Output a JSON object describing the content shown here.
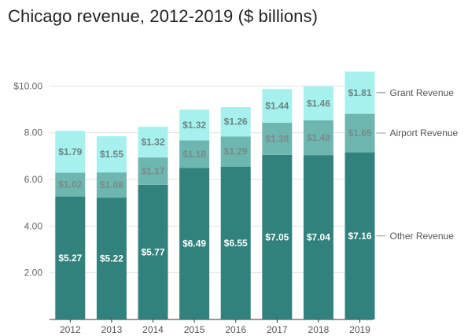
{
  "title": "Chicago revenue, 2012-2019 ($ billions)",
  "chart_data": {
    "type": "bar",
    "stacked": true,
    "title": "Chicago revenue, 2012-2019 ($ billions)",
    "categories": [
      "2012",
      "2013",
      "2014",
      "2015",
      "2016",
      "2017",
      "2018",
      "2019"
    ],
    "ylim": [
      0,
      12
    ],
    "yticks": [
      2,
      4,
      6,
      8,
      10
    ],
    "ytick_labels": [
      "2.00",
      "4.00",
      "6.00",
      "8.00",
      "$10.00"
    ],
    "grid": true,
    "legend_placement": "right, inline at top of final bar segments",
    "series": [
      {
        "name": "Other Revenue",
        "values": [
          5.27,
          5.22,
          5.77,
          6.49,
          6.55,
          7.05,
          7.04,
          7.16
        ],
        "labels": [
          "$5.27",
          "$5.22",
          "$5.77",
          "$6.49",
          "$6.55",
          "$7.05",
          "$7.04",
          "$7.16"
        ],
        "color": "#31817c",
        "label_color": "#ffffff"
      },
      {
        "name": "Airport Revenue",
        "values": [
          1.02,
          1.08,
          1.17,
          1.18,
          1.29,
          1.38,
          1.49,
          1.65
        ],
        "labels": [
          "$1.02",
          "$1.08",
          "$1.17",
          "$1.18",
          "$1.29",
          "$1.38",
          "$1.49",
          "$1.65"
        ],
        "color": "#6eb7b1",
        "label_color": "#7a8a89"
      },
      {
        "name": "Grant Revenue",
        "values": [
          1.79,
          1.55,
          1.32,
          1.32,
          1.26,
          1.44,
          1.46,
          1.81
        ],
        "labels": [
          "$1.79",
          "$1.55",
          "$1.32",
          "$1.32",
          "$1.26",
          "$1.44",
          "$1.46",
          "$1.81"
        ],
        "color": "#a6f0ee",
        "label_color": "#6d8584"
      }
    ]
  }
}
